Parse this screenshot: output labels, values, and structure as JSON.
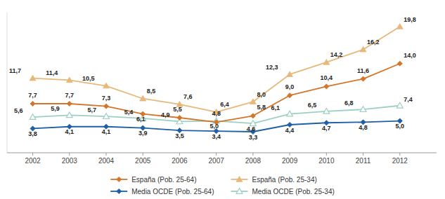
{
  "chart_data": {
    "type": "line",
    "x": [
      2002,
      2003,
      2004,
      2005,
      2006,
      2007,
      2008,
      2009,
      2010,
      2011,
      2012
    ],
    "xlim": [
      2001.3,
      2013.0
    ],
    "xticks": [
      2002,
      2003,
      2004,
      2005,
      2006,
      2007,
      2008,
      2009,
      2010,
      2011,
      2012
    ],
    "ylim": [
      0,
      22
    ],
    "tick_labels": "x",
    "grid": false,
    "legend": "bottom",
    "data_labels": true,
    "series": [
      {
        "name": "España (Pob. 25-64)",
        "color": "#D4752A",
        "marker": "diamond",
        "line_style": "solid",
        "values": [
          7.7,
          7.7,
          7.3,
          6.1,
          5.5,
          4.8,
          5.8,
          9.0,
          10.4,
          11.6,
          14.0
        ],
        "value_labels": [
          "7,7",
          "7,7",
          "7,3",
          "6,1",
          "5,5",
          "4,8",
          "5,8",
          "9,0",
          "10,4",
          "11,6",
          "14,0"
        ]
      },
      {
        "name": "Media OCDE (Pob. 25-64)",
        "color": "#1F5FA6",
        "marker": "diamond",
        "line_style": "solid",
        "values": [
          3.8,
          4.1,
          4.1,
          3.9,
          3.5,
          3.4,
          3.3,
          4.4,
          4.7,
          4.8,
          5.0
        ],
        "value_labels": [
          "3,8",
          "4,1",
          "4,1",
          "3,9",
          "3,5",
          "3,4",
          "3,3",
          "4,4",
          "4,7",
          "4,8",
          "5,0"
        ]
      },
      {
        "name": "España (Pob. 25-34)",
        "color": "#E8B87A",
        "marker": "triangle",
        "line_style": "solid",
        "values": [
          11.7,
          11.4,
          10.5,
          8.5,
          7.6,
          6.4,
          8.0,
          12.3,
          14.2,
          16.2,
          19.8
        ],
        "value_labels": [
          "11,7",
          "11,4",
          "10,5",
          "8,5",
          "7,6",
          "6,4",
          "8,0",
          "12,3",
          "14,2",
          "16,2",
          "19,8"
        ]
      },
      {
        "name": "Media OCDE (Pob. 25-34)",
        "color": "#9ECFC4",
        "marker": "triangle-open",
        "line_style": "solid",
        "values": [
          5.6,
          5.9,
          5.7,
          5.4,
          4.9,
          5.0,
          4.6,
          6.1,
          6.5,
          6.8,
          7.4
        ],
        "value_labels": [
          "5,6",
          "5,9",
          "5,7",
          "5,4",
          "4,9",
          "5,0",
          "4,6",
          "6,1",
          "6,5",
          "6,8",
          "7,4"
        ]
      }
    ]
  }
}
